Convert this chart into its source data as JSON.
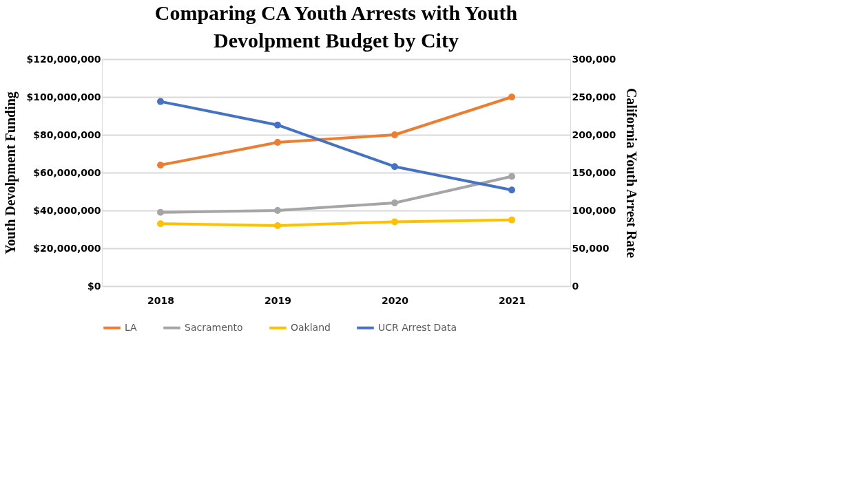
{
  "chart_data": {
    "type": "line",
    "title": "Comparing CA Youth Arrests with Youth Devolpment Budget by City",
    "ylabel": "Youth Devolpment Funding",
    "y2label": "California Youth Arrest Rate",
    "categories": [
      "2018",
      "2019",
      "2020",
      "2021"
    ],
    "series": [
      {
        "name": "LA",
        "color": "#ed7d31",
        "values": [
          64000000,
          76000000,
          80000000,
          100000000
        ]
      },
      {
        "name": "Sacramento",
        "color": "#a5a5a5",
        "values": [
          39000000,
          40000000,
          44000000,
          58000000
        ]
      },
      {
        "name": "Oakland",
        "color": "#ffc000",
        "values": [
          33000000,
          32000000,
          34000000,
          35000000
        ]
      },
      {
        "name": "UCR Arrest Data",
        "color": "#4472c4",
        "axis": "y2",
        "values": [
          244000,
          213000,
          158000,
          127000
        ]
      }
    ],
    "ylim": [
      0,
      120000000
    ],
    "yticks": [
      {
        "value": 0,
        "label": "$0"
      },
      {
        "value": 20000000,
        "label": "$20,000,000"
      },
      {
        "value": 40000000,
        "label": "$40,000,000"
      },
      {
        "value": 60000000,
        "label": "$60,000,000"
      },
      {
        "value": 80000000,
        "label": "$80,000,000"
      },
      {
        "value": 100000000,
        "label": "$100,000,000"
      },
      {
        "value": 120000000,
        "label": "$120,000,000"
      }
    ],
    "y2lim": [
      0,
      300000
    ],
    "y2ticks": [
      {
        "value": 0,
        "label": "0"
      },
      {
        "value": 50000,
        "label": "50,000"
      },
      {
        "value": 100000,
        "label": "100,000"
      },
      {
        "value": 150000,
        "label": "150,000"
      },
      {
        "value": 200000,
        "label": "200,000"
      },
      {
        "value": 250000,
        "label": "250,000"
      },
      {
        "value": 300000,
        "label": "300,000"
      }
    ],
    "grid": "y",
    "legend": "bottom",
    "marker": "circle",
    "line_style": "solid"
  }
}
